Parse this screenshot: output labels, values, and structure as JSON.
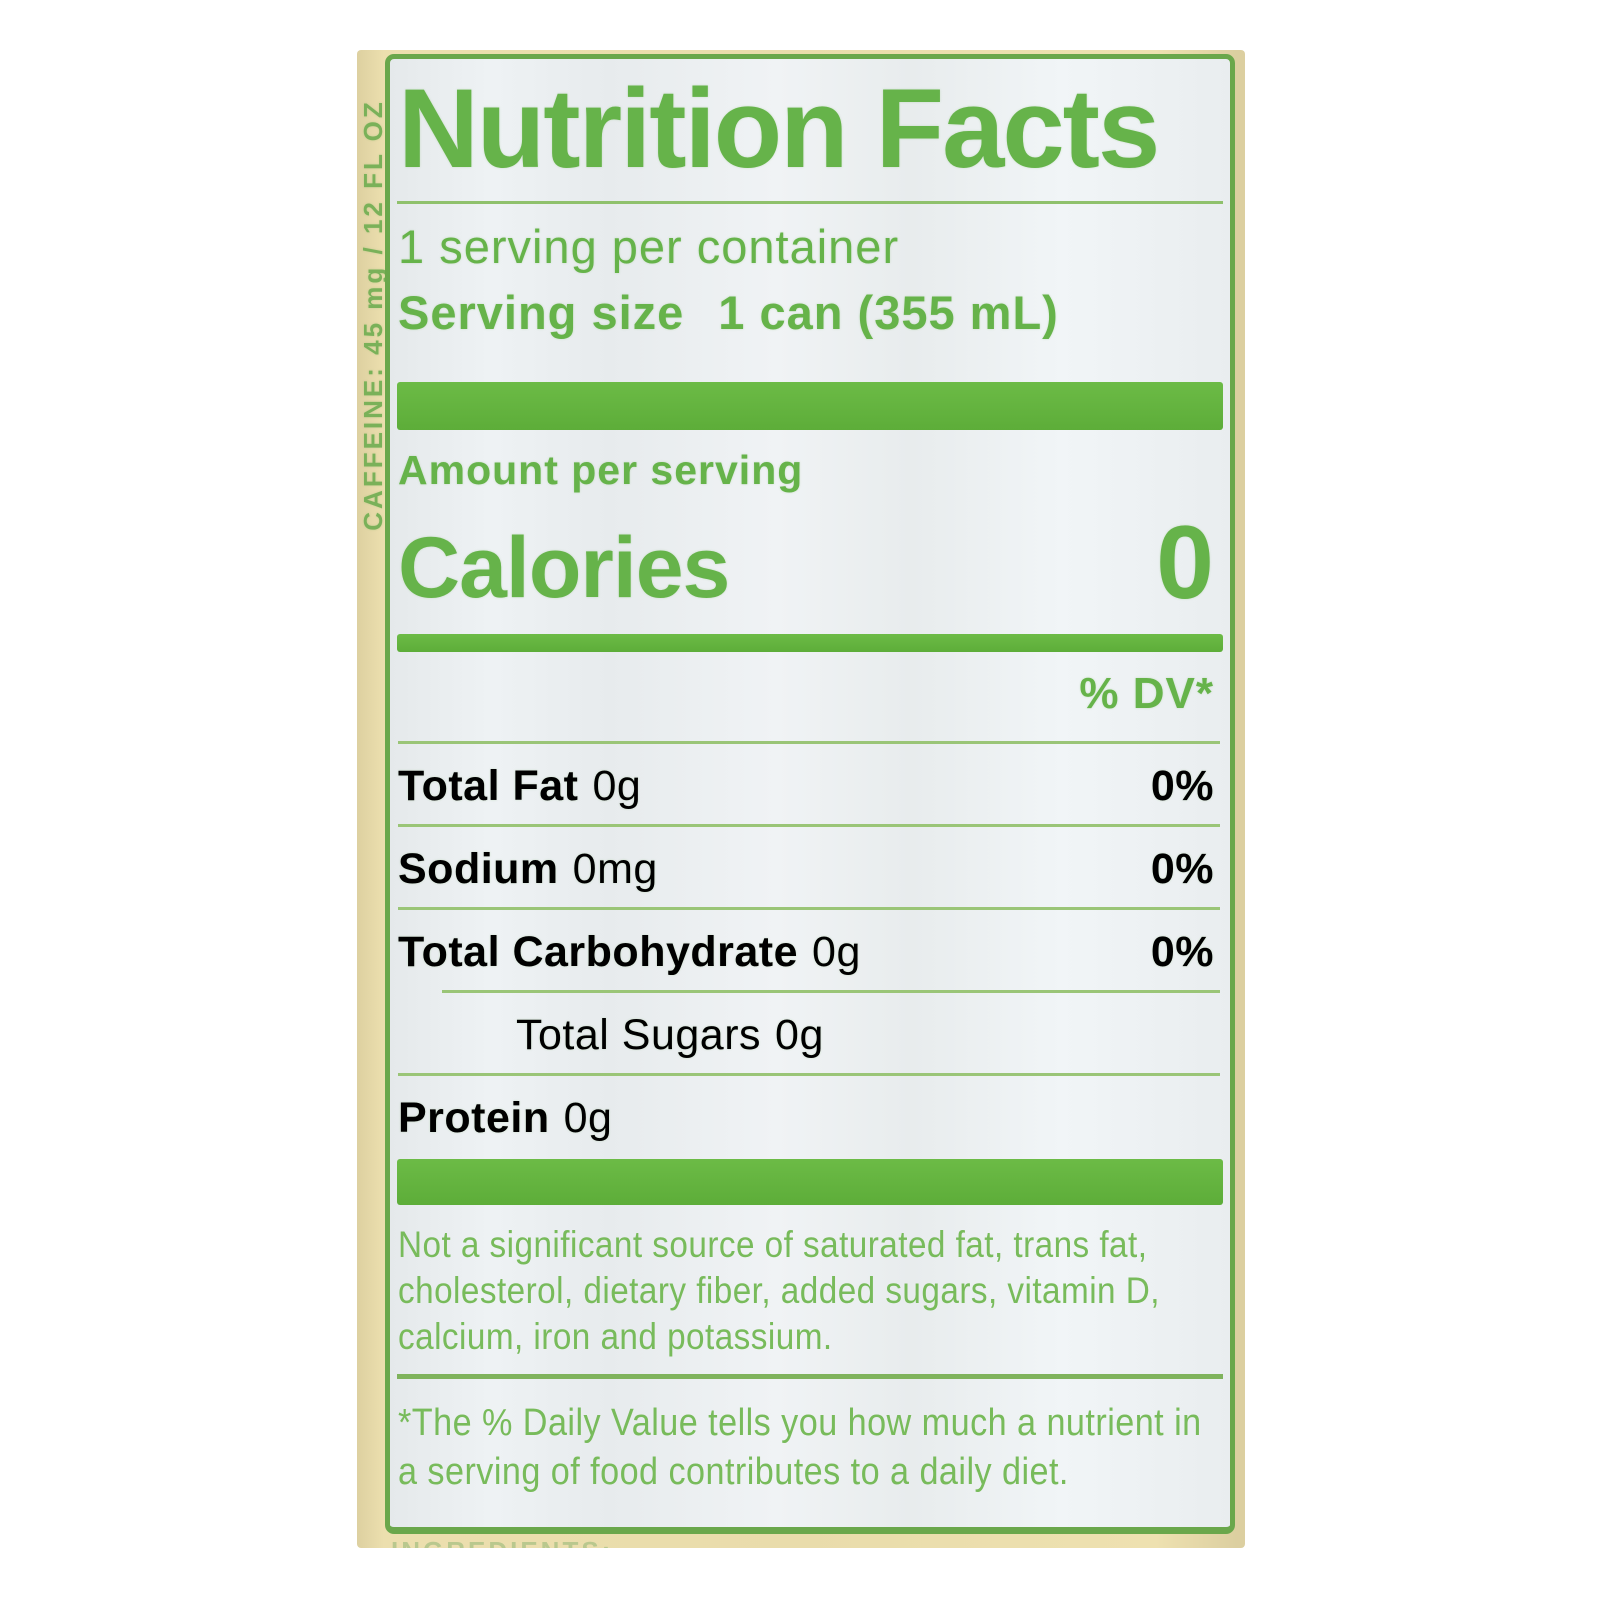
{
  "colors": {
    "green_text": "#66b34a",
    "green_bar": "#5fae3b",
    "green_border": "#6aa74b",
    "can_cream": "#e9dcab",
    "label_background": "#eaeef0"
  },
  "can": {
    "side_vertical_text": "CAFFEINE: 45 mg / 12 FL OZ",
    "bottom_clipped_text": "INGREDIENTS:"
  },
  "label": {
    "title": "Nutrition Facts",
    "servings_per_container": "1 serving per container",
    "serving_size": {
      "label": "Serving size",
      "value": "1 can (355 mL)"
    },
    "amount_per_serving": "Amount per serving",
    "calories": {
      "label": "Calories",
      "value": "0"
    },
    "dv_header": "% DV*",
    "rows": [
      {
        "label": "Total Fat",
        "amount": "0g",
        "dv": "0%"
      },
      {
        "label": "Sodium",
        "amount": "0mg",
        "dv": "0%"
      },
      {
        "label": "Total Carbohydrate",
        "amount": "0g",
        "dv": "0%"
      },
      {
        "label": "Total Sugars",
        "amount": "0g"
      },
      {
        "label": "Protein",
        "amount": "0g"
      }
    ],
    "footnote": "Not a significant source of saturated fat, trans fat, cholesterol, dietary fiber, added sugars, vitamin D, calcium, iron and potassium.",
    "daily_value_note": "*The % Daily Value tells you how much a nutrient in a serving of food contributes to a daily diet."
  }
}
